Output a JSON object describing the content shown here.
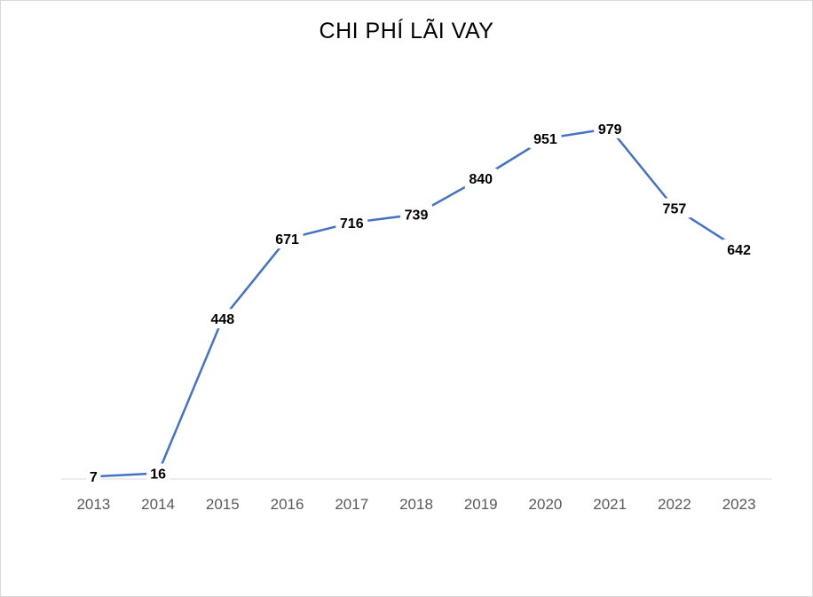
{
  "chart_data": {
    "type": "line",
    "title": "CHI PHÍ LÃI VAY",
    "categories": [
      "2013",
      "2014",
      "2015",
      "2016",
      "2017",
      "2018",
      "2019",
      "2020",
      "2021",
      "2022",
      "2023"
    ],
    "series": [
      {
        "values": [
          7,
          16,
          448,
          671,
          716,
          739,
          840,
          951,
          979,
          757,
          642
        ]
      }
    ],
    "xlabel": "",
    "ylabel": "",
    "ylim": [
      0,
      1100
    ],
    "grid": false,
    "legend": "none",
    "line_color": "#4472c4",
    "data_labels": true
  }
}
